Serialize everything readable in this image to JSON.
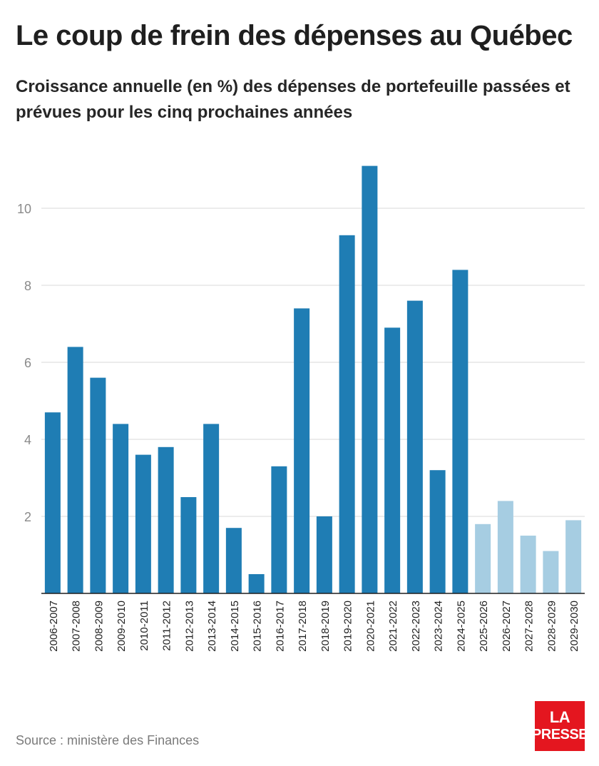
{
  "header": {
    "title": "Le coup de frein des dépenses au Québec",
    "subtitle": "Croissance annuelle (en %) des dépenses de portefeuille passées et prévues pour les cinq prochaines années"
  },
  "footer": {
    "source": "Source : ministère des Finances",
    "logo_line1": "LA",
    "logo_line2": "PRESSE"
  },
  "colors": {
    "actual": "#1f7db4",
    "forecast": "#a6cde2",
    "grid": "#d9d9d9",
    "axis": "#1f1f1f",
    "tick_text": "#8a8a8a",
    "logo_bg": "#e4161f"
  },
  "chart_data": {
    "type": "bar",
    "title": "Le coup de frein des dépenses au Québec",
    "subtitle": "Croissance annuelle (en %) des dépenses de portefeuille passées et prévues pour les cinq prochaines années",
    "xlabel": "",
    "ylabel": "",
    "ylim": [
      0,
      11
    ],
    "yticks": [
      2,
      4,
      6,
      8,
      10
    ],
    "grid": true,
    "categories": [
      "2006-2007",
      "2007-2008",
      "2008-2009",
      "2009-2010",
      "2010-2011",
      "2011-2012",
      "2012-2013",
      "2013-2014",
      "2014-2015",
      "2015-2016",
      "2016-2017",
      "2017-2018",
      "2018-2019",
      "2019-2020",
      "2020-2021",
      "2021-2022",
      "2022-2023",
      "2023-2024",
      "2024-2025",
      "2025-2026",
      "2026-2027",
      "2027-2028",
      "2028-2029",
      "2029-2030"
    ],
    "values": [
      4.7,
      6.4,
      5.6,
      4.4,
      3.6,
      3.8,
      2.5,
      4.4,
      1.7,
      0.5,
      3.3,
      7.4,
      2.0,
      9.3,
      11.1,
      6.9,
      7.6,
      3.2,
      8.4,
      1.8,
      2.4,
      1.5,
      1.1,
      1.9
    ],
    "forecast": [
      false,
      false,
      false,
      false,
      false,
      false,
      false,
      false,
      false,
      false,
      false,
      false,
      false,
      false,
      false,
      false,
      false,
      false,
      false,
      true,
      true,
      true,
      true,
      true
    ]
  }
}
